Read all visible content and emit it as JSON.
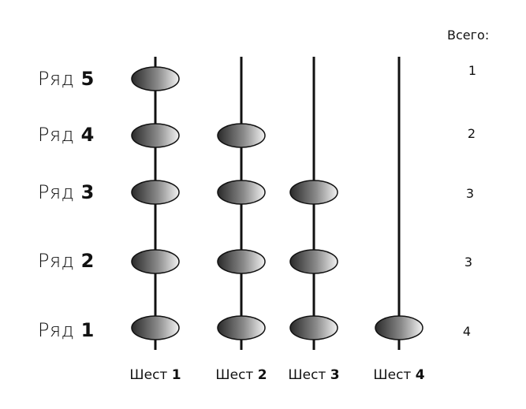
{
  "totals_header": "Всего:",
  "rows": [
    {
      "word": "Ряд",
      "num": "5",
      "total": "1"
    },
    {
      "word": "Ряд",
      "num": "4",
      "total": "2"
    },
    {
      "word": "Ряд",
      "num": "3",
      "total": "3"
    },
    {
      "word": "Ряд",
      "num": "2",
      "total": "3"
    },
    {
      "word": "Ряд",
      "num": "1",
      "total": "4"
    }
  ],
  "poles": [
    {
      "word": "Шест",
      "num": "1"
    },
    {
      "word": "Шест",
      "num": "2"
    },
    {
      "word": "Шест",
      "num": "3"
    },
    {
      "word": "Шест",
      "num": "4"
    }
  ],
  "beads": [
    [
      1,
      1,
      1,
      1,
      1
    ],
    [
      1,
      1,
      1,
      1,
      0
    ],
    [
      1,
      1,
      1,
      0,
      0
    ],
    [
      1,
      0,
      0,
      0,
      0
    ]
  ]
}
